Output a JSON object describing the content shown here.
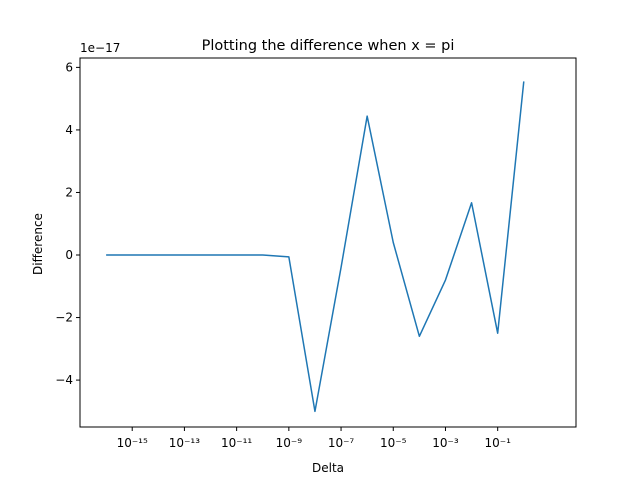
{
  "chart_data": {
    "type": "line",
    "title": "Plotting the difference when x = pi",
    "xlabel": "Delta",
    "ylabel": "Difference",
    "x_scale": "log",
    "y_offset_label": "1e−17",
    "xlim": [
      1e-17,
      100
    ],
    "ylim": [
      -5.5e-17,
      6.3e-17
    ],
    "grid": false,
    "line_color": "#1f77b4",
    "x_ticks": [
      {
        "value": 1e-15,
        "label": "10⁻¹⁵"
      },
      {
        "value": 1e-13,
        "label": "10⁻¹³"
      },
      {
        "value": 1e-11,
        "label": "10⁻¹¹"
      },
      {
        "value": 1e-09,
        "label": "10⁻⁹"
      },
      {
        "value": 1e-07,
        "label": "10⁻⁷"
      },
      {
        "value": 1e-05,
        "label": "10⁻⁵"
      },
      {
        "value": 0.001,
        "label": "10⁻³"
      },
      {
        "value": 0.1,
        "label": "10⁻¹"
      }
    ],
    "y_ticks": [
      {
        "value": -4e-17,
        "label": "−4"
      },
      {
        "value": -2e-17,
        "label": "−2"
      },
      {
        "value": 0,
        "label": "0"
      },
      {
        "value": 2e-17,
        "label": "2"
      },
      {
        "value": 4e-17,
        "label": "4"
      },
      {
        "value": 6e-17,
        "label": "6"
      }
    ],
    "series": [
      {
        "x": [
          1e-16,
          1e-15,
          1e-14,
          1e-13,
          1e-12,
          1e-11,
          1e-10,
          1e-09,
          1e-08,
          1e-07,
          1e-06,
          1e-05,
          0.0001,
          0.001,
          0.01,
          0.1,
          1
        ],
        "y": [
          0,
          0,
          0,
          0,
          0,
          0,
          0,
          -6e-19,
          -5e-17,
          -4e-18,
          4.44e-17,
          4e-18,
          -2.6e-17,
          -8e-18,
          1.67e-17,
          -2.5e-17,
          5.55e-17
        ]
      }
    ]
  }
}
